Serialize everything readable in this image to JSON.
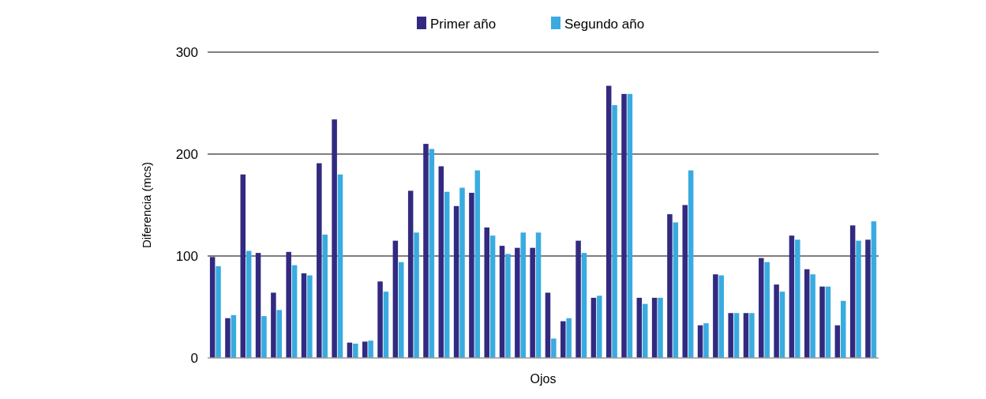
{
  "chart_data": {
    "type": "bar",
    "xlabel": "Ojos",
    "ylabel": "Diferencia (mcs)",
    "categories": [
      null,
      null,
      null,
      null,
      null,
      null,
      null,
      null,
      null,
      null,
      null,
      null,
      null,
      null,
      null,
      null,
      null,
      null,
      null,
      null,
      null,
      null,
      null,
      null,
      null,
      null,
      null,
      null,
      null,
      null,
      null,
      null,
      null,
      null,
      null,
      null,
      null,
      null,
      null,
      null,
      null,
      null,
      null,
      null
    ],
    "series": [
      {
        "name": "Primer año",
        "color": "#322a80",
        "values": [
          99,
          39,
          180,
          103,
          64,
          104,
          83,
          191,
          234,
          15,
          16,
          75,
          115,
          164,
          210,
          188,
          149,
          162,
          128,
          110,
          108,
          108,
          64,
          36,
          115,
          59,
          267,
          259,
          59,
          59,
          141,
          150,
          32,
          82,
          44,
          44,
          98,
          72,
          120,
          87,
          70,
          32,
          130,
          116
        ]
      },
      {
        "name": "Segundo año",
        "color": "#3aabe0",
        "values": [
          90,
          42,
          105,
          41,
          47,
          91,
          81,
          121,
          180,
          14,
          17,
          65,
          94,
          123,
          205,
          163,
          167,
          184,
          120,
          102,
          123,
          123,
          19,
          39,
          103,
          61,
          248,
          259,
          53,
          59,
          133,
          184,
          34,
          81,
          44,
          44,
          94,
          65,
          116,
          82,
          70,
          56,
          115,
          134
        ]
      }
    ],
    "ylim": [
      0,
      300
    ],
    "yticks": [
      0,
      100,
      200,
      300
    ],
    "grid": "y",
    "legend": "top"
  }
}
